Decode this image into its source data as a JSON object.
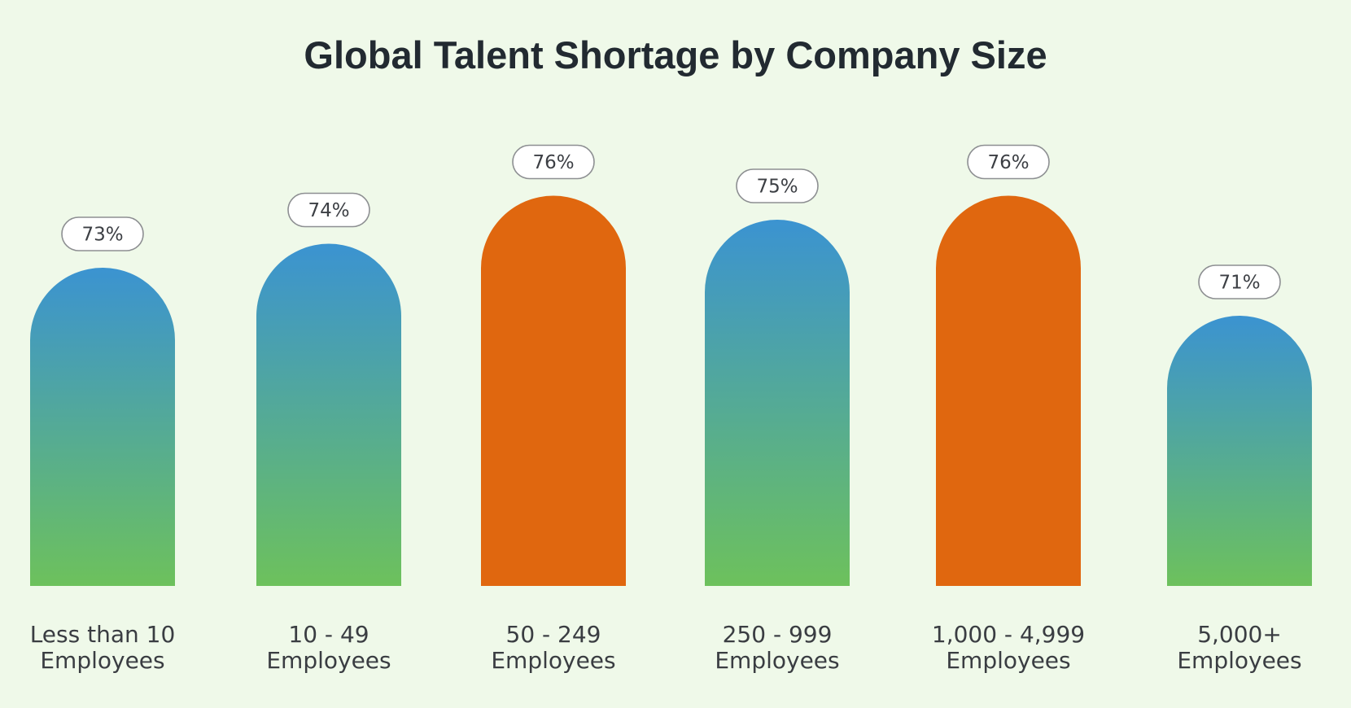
{
  "chart_data": {
    "type": "bar",
    "title": "Global Talent Shortage by Company Size",
    "categories": [
      [
        "Less than 10",
        "Employees"
      ],
      [
        "10 - 49",
        "Employees"
      ],
      [
        "50 - 249",
        "Employees"
      ],
      [
        "250 - 999",
        "Employees"
      ],
      [
        "1,000 - 4,999",
        "Employees"
      ],
      [
        "5,000+",
        "Employees"
      ]
    ],
    "values": [
      73,
      74,
      76,
      75,
      76,
      71
    ],
    "value_labels": [
      "73%",
      "74%",
      "76%",
      "75%",
      "76%",
      "71%"
    ],
    "highlighted": [
      false,
      false,
      true,
      false,
      true,
      false
    ],
    "xlabel": "",
    "ylabel": "",
    "grid": false,
    "legend": "none",
    "colors": {
      "gradient_top": "#3b93d1",
      "gradient_bottom": "#6dc15c",
      "highlight": "#e0670f"
    }
  }
}
